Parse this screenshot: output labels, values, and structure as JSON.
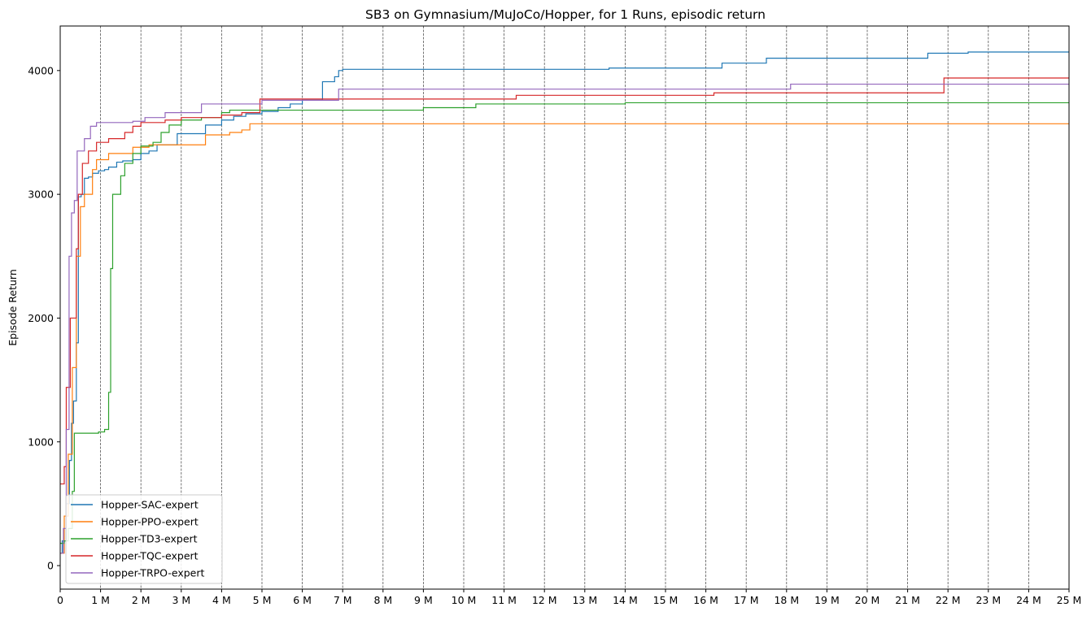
{
  "chart_data": {
    "type": "line",
    "title": "SB3 on Gymnasium/MuJoCo/Hopper, for 1 Runs, episodic return",
    "xlabel": "",
    "ylabel": "Episode Return",
    "xlim": [
      0,
      25000000
    ],
    "ylim": [
      -190,
      4360
    ],
    "x_ticks": [
      0,
      1000000,
      2000000,
      3000000,
      4000000,
      5000000,
      6000000,
      7000000,
      8000000,
      9000000,
      10000000,
      11000000,
      12000000,
      13000000,
      14000000,
      15000000,
      16000000,
      17000000,
      18000000,
      19000000,
      20000000,
      21000000,
      22000000,
      23000000,
      24000000,
      25000000
    ],
    "x_tick_labels": [
      "0",
      "1 M",
      "2 M",
      "3 M",
      "4 M",
      "5 M",
      "6 M",
      "7 M",
      "8 M",
      "9 M",
      "10 M",
      "11 M",
      "12 M",
      "13 M",
      "14 M",
      "15 M",
      "16 M",
      "17 M",
      "18 M",
      "19 M",
      "20 M",
      "21 M",
      "22 M",
      "23 M",
      "24 M",
      "25 M"
    ],
    "y_ticks": [
      0,
      1000,
      2000,
      3000,
      4000
    ],
    "y_tick_labels": [
      "0",
      "1000",
      "2000",
      "3000",
      "4000"
    ],
    "grid": "vertical dashed at x ticks",
    "legend_position": "lower-left",
    "step": true,
    "series": [
      {
        "name": "Hopper-SAC-expert",
        "color": "#1f77b4",
        "points": [
          [
            0,
            100
          ],
          [
            50000,
            200
          ],
          [
            150000,
            500
          ],
          [
            230000,
            850
          ],
          [
            280000,
            1150
          ],
          [
            330000,
            1330
          ],
          [
            400000,
            1800
          ],
          [
            450000,
            2980
          ],
          [
            520000,
            3000
          ],
          [
            600000,
            3130
          ],
          [
            700000,
            3140
          ],
          [
            800000,
            3170
          ],
          [
            950000,
            3190
          ],
          [
            1100000,
            3200
          ],
          [
            1200000,
            3220
          ],
          [
            1400000,
            3260
          ],
          [
            1550000,
            3270
          ],
          [
            1800000,
            3280
          ],
          [
            2000000,
            3330
          ],
          [
            2200000,
            3350
          ],
          [
            2400000,
            3400
          ],
          [
            2900000,
            3490
          ],
          [
            3200000,
            3490
          ],
          [
            3600000,
            3560
          ],
          [
            4000000,
            3600
          ],
          [
            4300000,
            3630
          ],
          [
            4600000,
            3650
          ],
          [
            5000000,
            3670
          ],
          [
            5400000,
            3700
          ],
          [
            5700000,
            3730
          ],
          [
            6000000,
            3760
          ],
          [
            6500000,
            3910
          ],
          [
            6800000,
            3950
          ],
          [
            6900000,
            4000
          ],
          [
            7000000,
            4010
          ],
          [
            13600000,
            4020
          ],
          [
            16400000,
            4060
          ],
          [
            17500000,
            4100
          ],
          [
            21500000,
            4140
          ],
          [
            22500000,
            4150
          ],
          [
            25000000,
            4150
          ]
        ]
      },
      {
        "name": "Hopper-PPO-expert",
        "color": "#ff7f0e",
        "points": [
          [
            0,
            100
          ],
          [
            100000,
            400
          ],
          [
            200000,
            900
          ],
          [
            300000,
            1600
          ],
          [
            400000,
            2500
          ],
          [
            500000,
            2900
          ],
          [
            600000,
            3000
          ],
          [
            800000,
            3200
          ],
          [
            900000,
            3280
          ],
          [
            1200000,
            3330
          ],
          [
            1800000,
            3380
          ],
          [
            2200000,
            3400
          ],
          [
            2900000,
            3400
          ],
          [
            3600000,
            3480
          ],
          [
            4200000,
            3500
          ],
          [
            4500000,
            3520
          ],
          [
            4700000,
            3570
          ],
          [
            25000000,
            3570
          ]
        ]
      },
      {
        "name": "Hopper-TD3-expert",
        "color": "#2ca02c",
        "points": [
          [
            0,
            180
          ],
          [
            100000,
            200
          ],
          [
            200000,
            300
          ],
          [
            300000,
            600
          ],
          [
            350000,
            1070
          ],
          [
            950000,
            1080
          ],
          [
            1100000,
            1100
          ],
          [
            1200000,
            1400
          ],
          [
            1250000,
            2400
          ],
          [
            1300000,
            3000
          ],
          [
            1500000,
            3150
          ],
          [
            1600000,
            3250
          ],
          [
            1800000,
            3330
          ],
          [
            2000000,
            3390
          ],
          [
            2300000,
            3420
          ],
          [
            2500000,
            3500
          ],
          [
            2700000,
            3560
          ],
          [
            3000000,
            3600
          ],
          [
            3500000,
            3620
          ],
          [
            4000000,
            3660
          ],
          [
            4200000,
            3680
          ],
          [
            5000000,
            3680
          ],
          [
            9000000,
            3700
          ],
          [
            10300000,
            3730
          ],
          [
            14000000,
            3740
          ],
          [
            25000000,
            3740
          ]
        ]
      },
      {
        "name": "Hopper-TQC-expert",
        "color": "#d62728",
        "points": [
          [
            0,
            660
          ],
          [
            100000,
            800
          ],
          [
            150000,
            1440
          ],
          [
            250000,
            2000
          ],
          [
            400000,
            2560
          ],
          [
            450000,
            3000
          ],
          [
            550000,
            3250
          ],
          [
            700000,
            3350
          ],
          [
            900000,
            3420
          ],
          [
            1200000,
            3450
          ],
          [
            1600000,
            3500
          ],
          [
            1800000,
            3550
          ],
          [
            2000000,
            3580
          ],
          [
            2600000,
            3600
          ],
          [
            3000000,
            3620
          ],
          [
            4000000,
            3640
          ],
          [
            4500000,
            3660
          ],
          [
            4950000,
            3770
          ],
          [
            7000000,
            3770
          ],
          [
            11300000,
            3800
          ],
          [
            16200000,
            3820
          ],
          [
            21900000,
            3940
          ],
          [
            25000000,
            3940
          ]
        ]
      },
      {
        "name": "Hopper-TRPO-expert",
        "color": "#9467bd",
        "points": [
          [
            0,
            100
          ],
          [
            80000,
            300
          ],
          [
            150000,
            1100
          ],
          [
            220000,
            2500
          ],
          [
            280000,
            2850
          ],
          [
            350000,
            2950
          ],
          [
            420000,
            3350
          ],
          [
            600000,
            3450
          ],
          [
            750000,
            3550
          ],
          [
            900000,
            3580
          ],
          [
            1800000,
            3590
          ],
          [
            2100000,
            3620
          ],
          [
            2600000,
            3660
          ],
          [
            3500000,
            3730
          ],
          [
            5000000,
            3760
          ],
          [
            6900000,
            3850
          ],
          [
            18100000,
            3890
          ],
          [
            25000000,
            3890
          ]
        ]
      }
    ]
  }
}
